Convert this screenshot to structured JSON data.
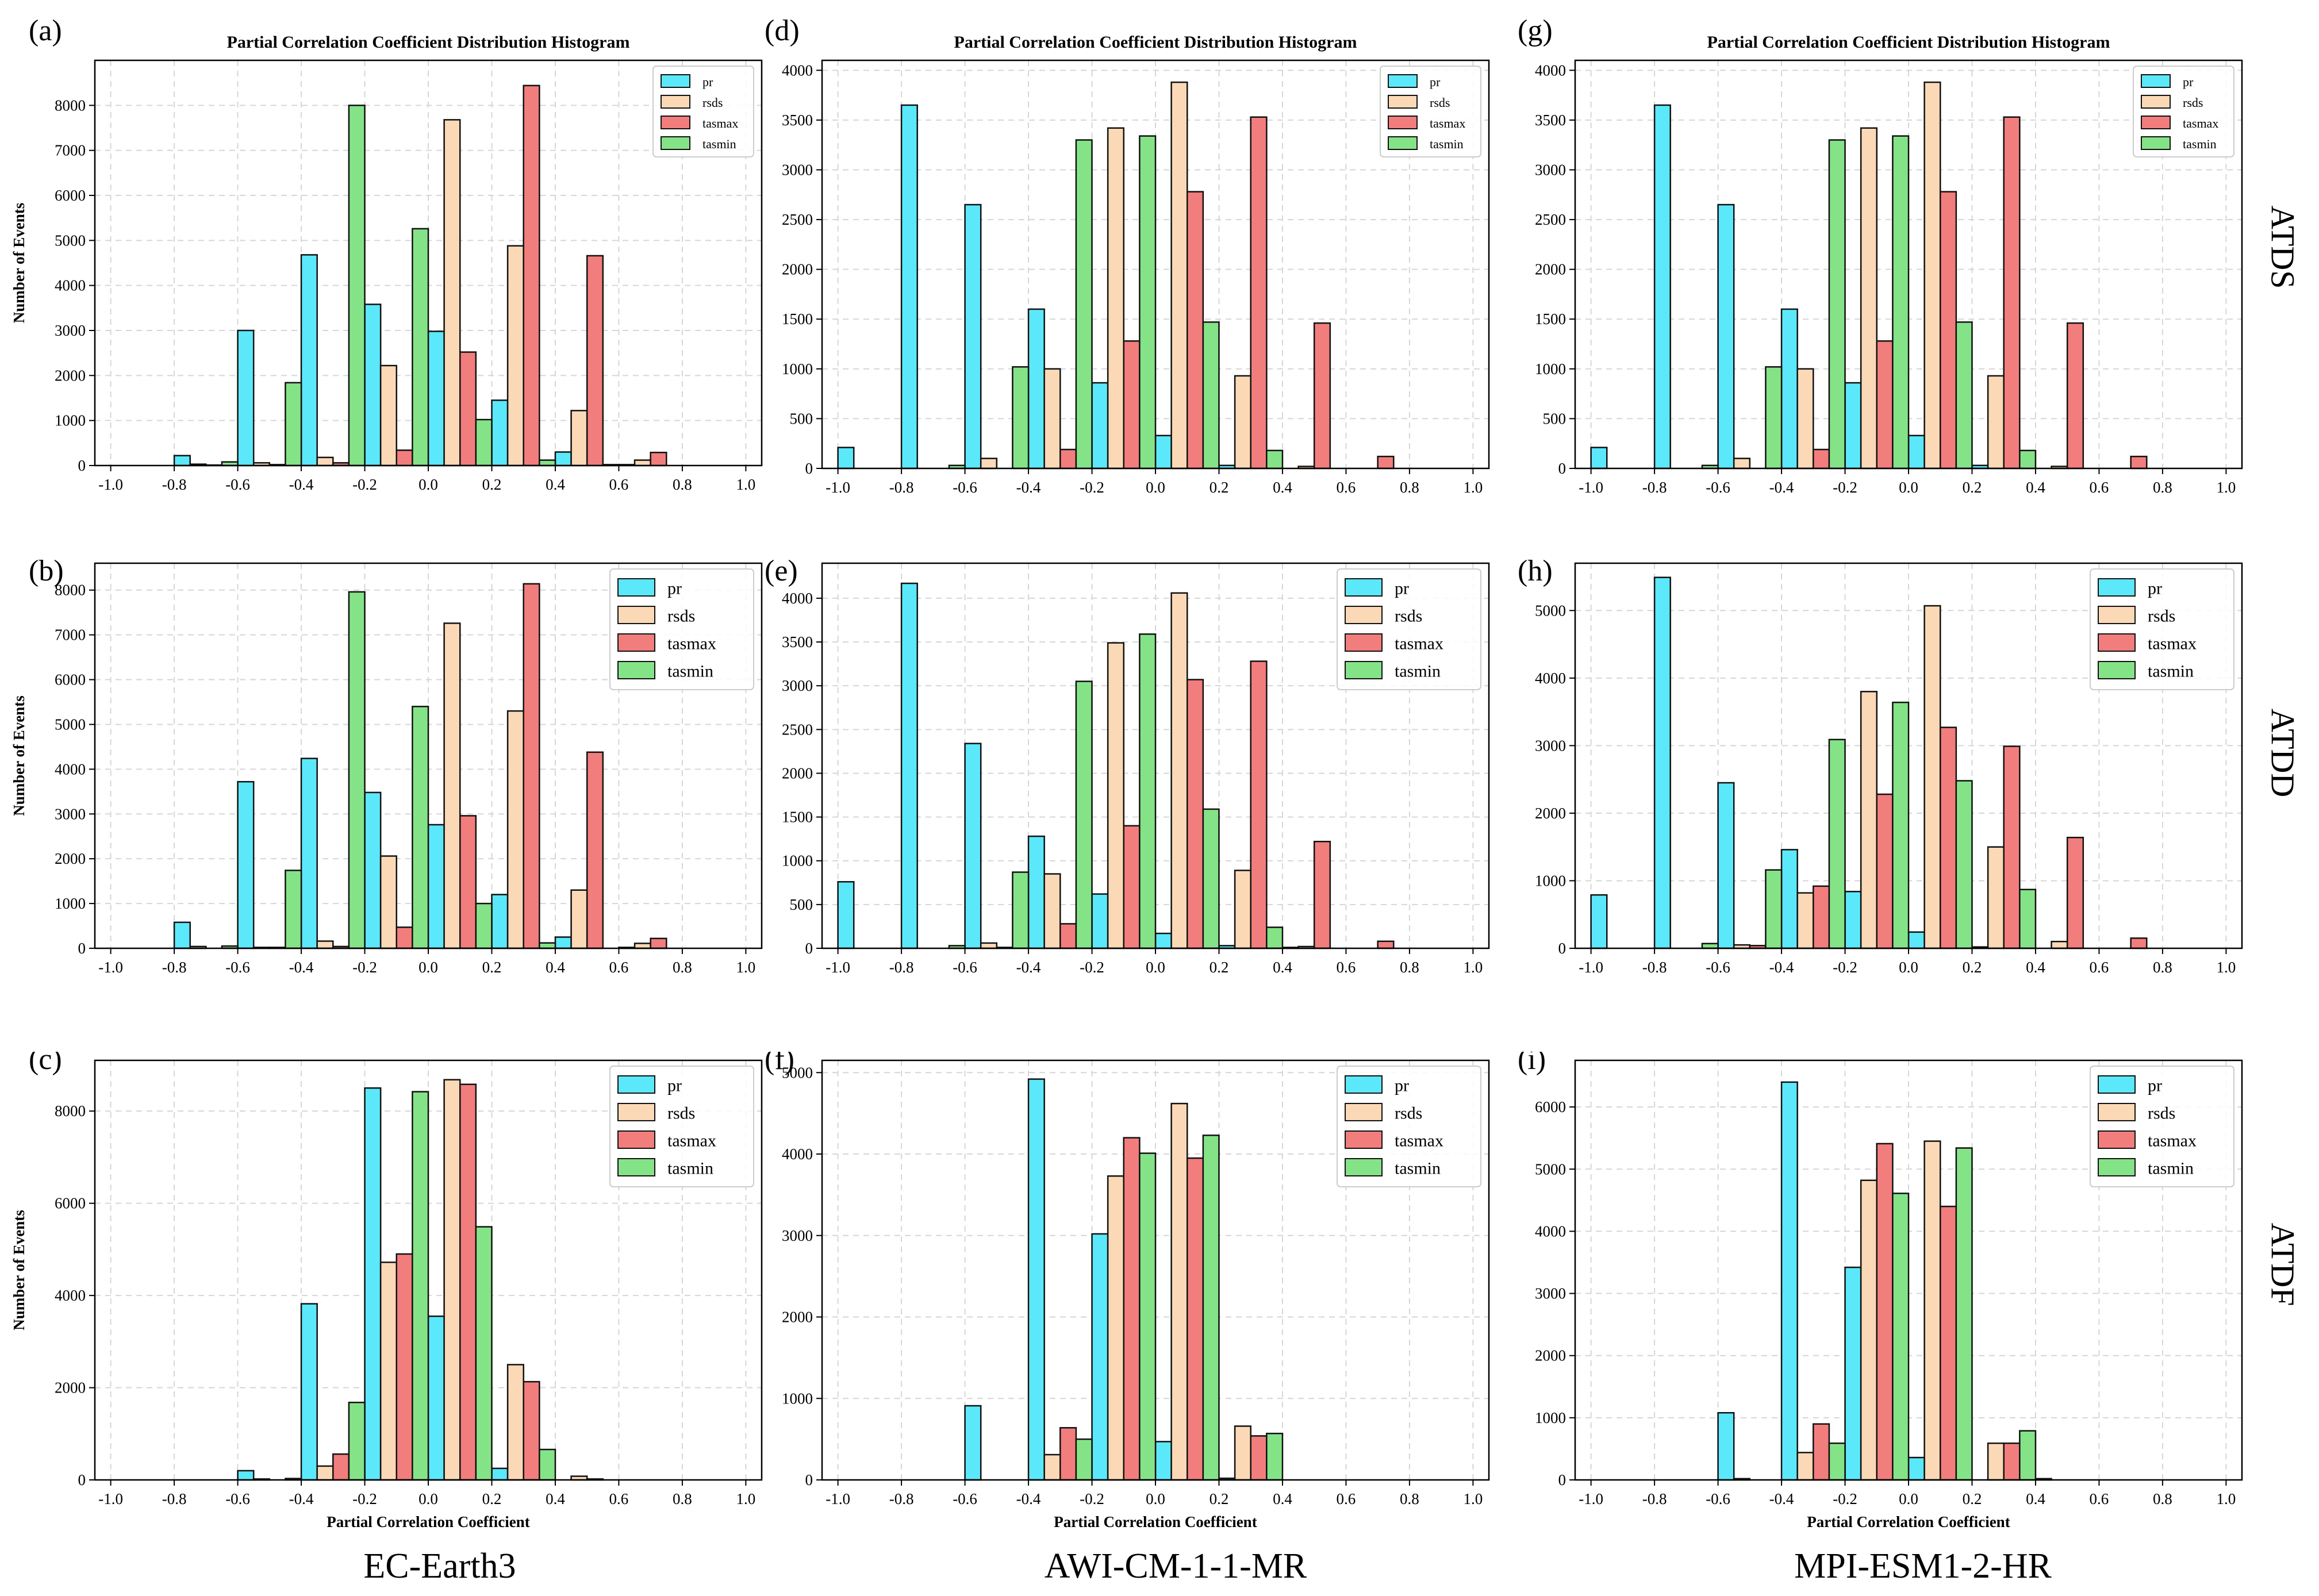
{
  "figure": {
    "colors": {
      "pr": "#5ce8fb",
      "rsds": "#fcd9b6",
      "tasmax": "#f27d7d",
      "tasmin": "#85e387"
    },
    "row_labels": [
      "ATDS",
      "ATDD",
      "ATDF"
    ],
    "column_labels": [
      "EC-Earth3",
      "AWI-CM-1-1-MR",
      "MPI-ESM1-2-HR"
    ]
  },
  "chart_data": [
    {
      "panel": "(a)",
      "type": "bar",
      "title": "Partial Correlation Coefficient Distribution Histogram",
      "xlabel": "",
      "ylabel": "Number of Events",
      "xlim": [
        -1.05,
        1.05
      ],
      "ylim": [
        0,
        9000
      ],
      "xticks": [
        -1.0,
        -0.8,
        -0.6,
        -0.4,
        -0.2,
        0.0,
        0.2,
        0.4,
        0.6,
        0.8,
        1.0
      ],
      "yticks": [
        0,
        1000,
        2000,
        3000,
        4000,
        5000,
        6000,
        7000,
        8000
      ],
      "legend": "top-right",
      "grid": true,
      "bin_width": 0.2,
      "bin_centers": [
        -0.9,
        -0.7,
        -0.5,
        -0.3,
        -0.1,
        0.1,
        0.3,
        0.5,
        0.7,
        0.9
      ],
      "series": [
        {
          "name": "pr",
          "values": [
            0,
            220,
            3000,
            4680,
            3580,
            2980,
            1450,
            300,
            20,
            0
          ]
        },
        {
          "name": "rsds",
          "values": [
            0,
            30,
            60,
            180,
            2220,
            7680,
            4880,
            1220,
            120,
            0
          ]
        },
        {
          "name": "tasmax",
          "values": [
            0,
            10,
            20,
            60,
            340,
            2520,
            8440,
            4660,
            290,
            0
          ]
        },
        {
          "name": "tasmin",
          "values": [
            0,
            80,
            1840,
            8000,
            5260,
            1020,
            120,
            20,
            0,
            0
          ]
        }
      ]
    },
    {
      "panel": "(d)",
      "type": "bar",
      "title": "Partial Correlation Coefficient Distribution Histogram",
      "xlabel": "",
      "ylabel": "",
      "xlim": [
        -1.05,
        1.05
      ],
      "ylim": [
        0,
        4100
      ],
      "xticks": [
        -1.0,
        -0.8,
        -0.6,
        -0.4,
        -0.2,
        0.0,
        0.2,
        0.4,
        0.6,
        0.8,
        1.0
      ],
      "yticks": [
        0,
        500,
        1000,
        1500,
        2000,
        2500,
        3000,
        3500,
        4000
      ],
      "legend": "top-right",
      "grid": true,
      "bin_width": 0.2,
      "bin_centers": [
        -0.9,
        -0.7,
        -0.5,
        -0.3,
        -0.1,
        0.1,
        0.3,
        0.5,
        0.7,
        0.9
      ],
      "series": [
        {
          "name": "pr",
          "values": [
            210,
            3650,
            2650,
            1600,
            860,
            330,
            30,
            0,
            0,
            0
          ]
        },
        {
          "name": "rsds",
          "values": [
            0,
            0,
            100,
            1000,
            3420,
            3880,
            930,
            20,
            0,
            0
          ]
        },
        {
          "name": "tasmax",
          "values": [
            0,
            0,
            0,
            190,
            1280,
            2780,
            3530,
            1460,
            120,
            0
          ]
        },
        {
          "name": "tasmin",
          "values": [
            0,
            30,
            1020,
            3300,
            3340,
            1470,
            180,
            0,
            0,
            0
          ]
        }
      ]
    },
    {
      "panel": "(g)",
      "type": "bar",
      "title": "Partial Correlation Coefficient Distribution Histogram",
      "xlabel": "",
      "ylabel": "",
      "xlim": [
        -1.05,
        1.05
      ],
      "ylim": [
        0,
        4100
      ],
      "xticks": [
        -1.0,
        -0.8,
        -0.6,
        -0.4,
        -0.2,
        0.0,
        0.2,
        0.4,
        0.6,
        0.8,
        1.0
      ],
      "yticks": [
        0,
        500,
        1000,
        1500,
        2000,
        2500,
        3000,
        3500,
        4000
      ],
      "legend": "top-right",
      "grid": true,
      "bin_width": 0.2,
      "bin_centers": [
        -0.9,
        -0.7,
        -0.5,
        -0.3,
        -0.1,
        0.1,
        0.3,
        0.5,
        0.7,
        0.9
      ],
      "series": [
        {
          "name": "pr",
          "values": [
            210,
            3650,
            2650,
            1600,
            860,
            330,
            30,
            0,
            0,
            0
          ]
        },
        {
          "name": "rsds",
          "values": [
            0,
            0,
            100,
            1000,
            3420,
            3880,
            930,
            20,
            0,
            0
          ]
        },
        {
          "name": "tasmax",
          "values": [
            0,
            0,
            0,
            190,
            1280,
            2780,
            3530,
            1460,
            120,
            0
          ]
        },
        {
          "name": "tasmin",
          "values": [
            0,
            30,
            1020,
            3300,
            3340,
            1470,
            180,
            0,
            0,
            0
          ]
        }
      ]
    },
    {
      "panel": "(b)",
      "type": "bar",
      "title": "",
      "xlabel": "",
      "ylabel": "Number of Events",
      "xlim": [
        -1.05,
        1.05
      ],
      "ylim": [
        0,
        8600
      ],
      "xticks": [
        -1.0,
        -0.8,
        -0.6,
        -0.4,
        -0.2,
        0.0,
        0.2,
        0.4,
        0.6,
        0.8,
        1.0
      ],
      "yticks": [
        0,
        1000,
        2000,
        3000,
        4000,
        5000,
        6000,
        7000,
        8000
      ],
      "legend": "top-right",
      "grid": true,
      "bin_width": 0.2,
      "bin_centers": [
        -0.9,
        -0.7,
        -0.5,
        -0.3,
        -0.1,
        0.1,
        0.3,
        0.5,
        0.7,
        0.9
      ],
      "series": [
        {
          "name": "pr",
          "values": [
            0,
            580,
            3720,
            4240,
            3480,
            2760,
            1200,
            250,
            20,
            0
          ]
        },
        {
          "name": "rsds",
          "values": [
            0,
            40,
            20,
            160,
            2060,
            7260,
            5300,
            1300,
            110,
            0
          ]
        },
        {
          "name": "tasmax",
          "values": [
            0,
            0,
            20,
            40,
            470,
            2960,
            8140,
            4380,
            220,
            0
          ]
        },
        {
          "name": "tasmin",
          "values": [
            0,
            50,
            1740,
            7960,
            5400,
            1000,
            120,
            0,
            0,
            0
          ]
        }
      ]
    },
    {
      "panel": "(e)",
      "type": "bar",
      "title": "",
      "xlabel": "",
      "ylabel": "",
      "xlim": [
        -1.05,
        1.05
      ],
      "ylim": [
        0,
        4400
      ],
      "xticks": [
        -1.0,
        -0.8,
        -0.6,
        -0.4,
        -0.2,
        0.0,
        0.2,
        0.4,
        0.6,
        0.8,
        1.0
      ],
      "yticks": [
        0,
        500,
        1000,
        1500,
        2000,
        2500,
        3000,
        3500,
        4000
      ],
      "legend": "top-right",
      "grid": true,
      "bin_width": 0.2,
      "bin_centers": [
        -0.9,
        -0.7,
        -0.5,
        -0.3,
        -0.1,
        0.1,
        0.3,
        0.5,
        0.7,
        0.9
      ],
      "series": [
        {
          "name": "pr",
          "values": [
            760,
            4170,
            2340,
            1280,
            620,
            170,
            30,
            10,
            0,
            0
          ]
        },
        {
          "name": "rsds",
          "values": [
            0,
            0,
            60,
            850,
            3490,
            4060,
            890,
            20,
            0,
            0
          ]
        },
        {
          "name": "tasmax",
          "values": [
            0,
            0,
            10,
            280,
            1400,
            3070,
            3280,
            1220,
            80,
            0
          ]
        },
        {
          "name": "tasmin",
          "values": [
            0,
            30,
            870,
            3050,
            3590,
            1590,
            240,
            0,
            0,
            0
          ]
        }
      ]
    },
    {
      "panel": "(h)",
      "type": "bar",
      "title": "",
      "xlabel": "",
      "ylabel": "",
      "xlim": [
        -1.05,
        1.05
      ],
      "ylim": [
        0,
        5700
      ],
      "xticks": [
        -1.0,
        -0.8,
        -0.6,
        -0.4,
        -0.2,
        0.0,
        0.2,
        0.4,
        0.6,
        0.8,
        1.0
      ],
      "yticks": [
        0,
        1000,
        2000,
        3000,
        4000,
        5000
      ],
      "legend": "top-right",
      "grid": true,
      "bin_width": 0.2,
      "bin_centers": [
        -0.9,
        -0.7,
        -0.5,
        -0.3,
        -0.1,
        0.1,
        0.3,
        0.5,
        0.7,
        0.9
      ],
      "series": [
        {
          "name": "pr",
          "values": [
            790,
            5490,
            2450,
            1460,
            840,
            240,
            20,
            0,
            0,
            0
          ]
        },
        {
          "name": "rsds",
          "values": [
            0,
            0,
            50,
            820,
            3800,
            5070,
            1500,
            100,
            0,
            0
          ]
        },
        {
          "name": "tasmax",
          "values": [
            0,
            0,
            40,
            920,
            2280,
            3270,
            2990,
            1640,
            150,
            0
          ]
        },
        {
          "name": "tasmin",
          "values": [
            0,
            70,
            1160,
            3090,
            3640,
            2480,
            870,
            0,
            0,
            0
          ]
        }
      ]
    },
    {
      "panel": "(c)",
      "type": "bar",
      "title": "",
      "xlabel": "Partial Correlation Coefficient",
      "ylabel": "Number of Events",
      "xlim": [
        -1.05,
        1.05
      ],
      "ylim": [
        0,
        9100
      ],
      "xticks": [
        -1.0,
        -0.8,
        -0.6,
        -0.4,
        -0.2,
        0.0,
        0.2,
        0.4,
        0.6,
        0.8,
        1.0
      ],
      "yticks": [
        0,
        2000,
        4000,
        6000,
        8000
      ],
      "legend": "top-right",
      "grid": true,
      "bin_width": 0.2,
      "bin_centers": [
        -0.9,
        -0.7,
        -0.5,
        -0.3,
        -0.1,
        0.1,
        0.3,
        0.5,
        0.7,
        0.9
      ],
      "series": [
        {
          "name": "pr",
          "values": [
            0,
            0,
            200,
            3820,
            8500,
            3550,
            250,
            0,
            0,
            0
          ]
        },
        {
          "name": "rsds",
          "values": [
            0,
            0,
            20,
            300,
            4720,
            8680,
            2500,
            80,
            0,
            0
          ]
        },
        {
          "name": "tasmax",
          "values": [
            0,
            0,
            0,
            560,
            4900,
            8580,
            2130,
            20,
            0,
            0
          ]
        },
        {
          "name": "tasmin",
          "values": [
            0,
            0,
            30,
            1680,
            8420,
            5490,
            660,
            0,
            0,
            0
          ]
        }
      ]
    },
    {
      "panel": "(f)",
      "type": "bar",
      "title": "",
      "xlabel": "Partial Correlation Coefficient",
      "ylabel": "",
      "xlim": [
        -1.05,
        1.05
      ],
      "ylim": [
        0,
        5150
      ],
      "xticks": [
        -1.0,
        -0.8,
        -0.6,
        -0.4,
        -0.2,
        0.0,
        0.2,
        0.4,
        0.6,
        0.8,
        1.0
      ],
      "yticks": [
        0,
        1000,
        2000,
        3000,
        4000,
        5000
      ],
      "legend": "top-right",
      "grid": true,
      "bin_width": 0.2,
      "bin_centers": [
        -0.9,
        -0.7,
        -0.5,
        -0.3,
        -0.1,
        0.1,
        0.3,
        0.5,
        0.7,
        0.9
      ],
      "series": [
        {
          "name": "pr",
          "values": [
            0,
            0,
            910,
            4920,
            3020,
            470,
            20,
            0,
            0,
            0
          ]
        },
        {
          "name": "rsds",
          "values": [
            0,
            0,
            0,
            310,
            3730,
            4620,
            660,
            0,
            0,
            0
          ]
        },
        {
          "name": "tasmax",
          "values": [
            0,
            0,
            0,
            640,
            4200,
            3950,
            540,
            0,
            0,
            0
          ]
        },
        {
          "name": "tasmin",
          "values": [
            0,
            0,
            0,
            500,
            4010,
            4230,
            570,
            0,
            0,
            0
          ]
        }
      ]
    },
    {
      "panel": "(i)",
      "type": "bar",
      "title": "",
      "xlabel": "Partial Correlation Coefficient",
      "ylabel": "",
      "xlim": [
        -1.05,
        1.05
      ],
      "ylim": [
        0,
        6750
      ],
      "xticks": [
        -1.0,
        -0.8,
        -0.6,
        -0.4,
        -0.2,
        0.0,
        0.2,
        0.4,
        0.6,
        0.8,
        1.0
      ],
      "yticks": [
        0,
        1000,
        2000,
        3000,
        4000,
        5000,
        6000
      ],
      "legend": "top-right",
      "grid": true,
      "bin_width": 0.2,
      "bin_centers": [
        -0.9,
        -0.7,
        -0.5,
        -0.3,
        -0.1,
        0.1,
        0.3,
        0.5,
        0.7,
        0.9
      ],
      "series": [
        {
          "name": "pr",
          "values": [
            0,
            0,
            1080,
            6400,
            3420,
            360,
            0,
            20,
            0,
            0
          ]
        },
        {
          "name": "rsds",
          "values": [
            0,
            0,
            20,
            440,
            4820,
            5450,
            590,
            0,
            0,
            0
          ]
        },
        {
          "name": "tasmax",
          "values": [
            0,
            0,
            0,
            900,
            5410,
            4400,
            590,
            0,
            0,
            0
          ]
        },
        {
          "name": "tasmin",
          "values": [
            0,
            0,
            0,
            590,
            4610,
            5340,
            790,
            0,
            0,
            0
          ]
        }
      ]
    }
  ]
}
